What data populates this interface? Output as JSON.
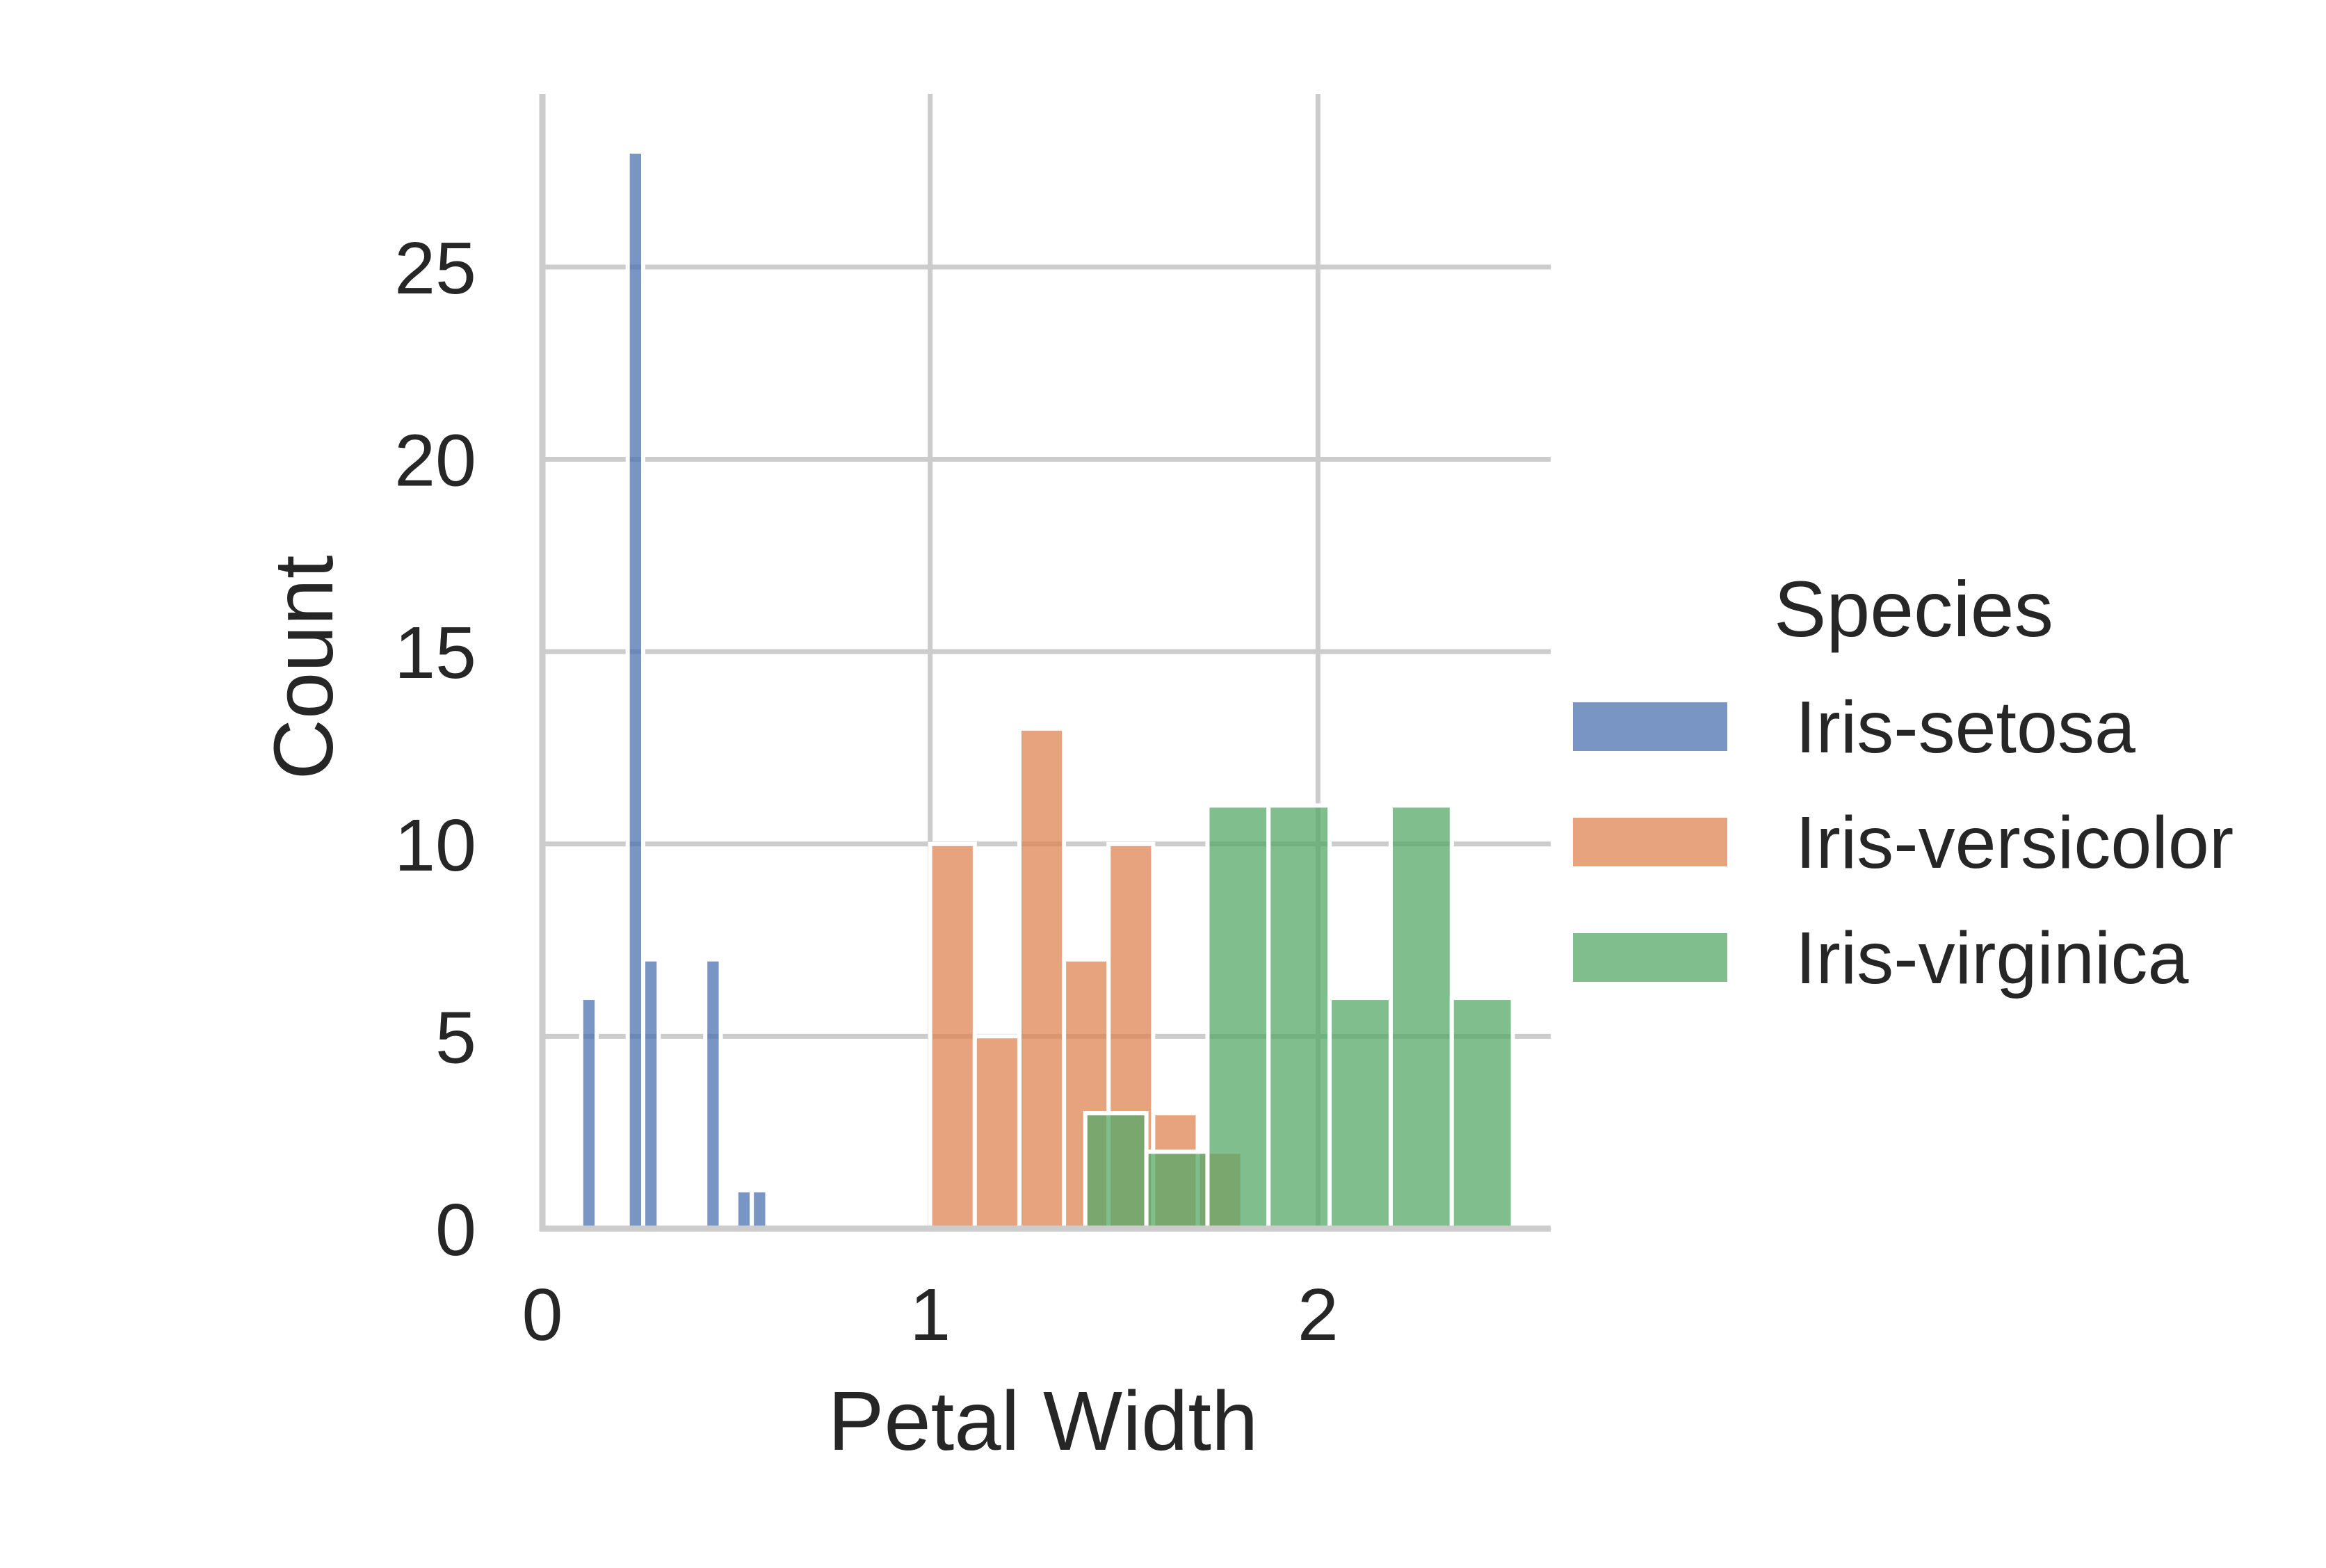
{
  "chart_data": {
    "type": "bar",
    "xlabel": "Petal Width",
    "ylabel": "Count",
    "xlim": [
      0,
      2.6
    ],
    "ylim": [
      0,
      29.5
    ],
    "xticks": [
      {
        "value": 0,
        "label": "0"
      },
      {
        "value": 1,
        "label": "1"
      },
      {
        "value": 2,
        "label": "2"
      }
    ],
    "yticks": [
      {
        "value": 0,
        "label": "0"
      },
      {
        "value": 5,
        "label": "5"
      },
      {
        "value": 10,
        "label": "10"
      },
      {
        "value": 15,
        "label": "15"
      },
      {
        "value": 20,
        "label": "20"
      },
      {
        "value": 25,
        "label": "25"
      }
    ],
    "grid": true,
    "legend": {
      "title": "Species",
      "placement": "right"
    },
    "series": [
      {
        "name": "Iris-setosa",
        "color": "#4c72b0",
        "bins": [
          {
            "x0": 0.1,
            "x1": 0.14,
            "count": 6
          },
          {
            "x0": 0.14,
            "x1": 0.18,
            "count": 0
          },
          {
            "x0": 0.18,
            "x1": 0.22,
            "count": 0
          },
          {
            "x0": 0.22,
            "x1": 0.26,
            "count": 28
          },
          {
            "x0": 0.26,
            "x1": 0.3,
            "count": 7
          },
          {
            "x0": 0.3,
            "x1": 0.34,
            "count": 0
          },
          {
            "x0": 0.34,
            "x1": 0.38,
            "count": 0
          },
          {
            "x0": 0.38,
            "x1": 0.42,
            "count": 0
          },
          {
            "x0": 0.42,
            "x1": 0.46,
            "count": 7
          },
          {
            "x0": 0.46,
            "x1": 0.5,
            "count": 0
          },
          {
            "x0": 0.5,
            "x1": 0.54,
            "count": 1
          },
          {
            "x0": 0.54,
            "x1": 0.58,
            "count": 1
          }
        ]
      },
      {
        "name": "Iris-versicolor",
        "color": "#dd8452",
        "bins": [
          {
            "x0": 1.0,
            "x1": 1.115,
            "count": 10
          },
          {
            "x0": 1.115,
            "x1": 1.23,
            "count": 5
          },
          {
            "x0": 1.23,
            "x1": 1.345,
            "count": 13
          },
          {
            "x0": 1.345,
            "x1": 1.46,
            "count": 7
          },
          {
            "x0": 1.46,
            "x1": 1.575,
            "count": 10
          },
          {
            "x0": 1.575,
            "x1": 1.69,
            "count": 3
          },
          {
            "x0": 1.69,
            "x1": 1.805,
            "count": 2
          }
        ]
      },
      {
        "name": "Iris-virginica",
        "color": "#55a868",
        "bins": [
          {
            "x0": 1.4,
            "x1": 1.5575,
            "count": 3
          },
          {
            "x0": 1.5575,
            "x1": 1.715,
            "count": 2
          },
          {
            "x0": 1.715,
            "x1": 1.8725,
            "count": 11
          },
          {
            "x0": 1.8725,
            "x1": 2.03,
            "count": 11
          },
          {
            "x0": 2.03,
            "x1": 2.1875,
            "count": 6
          },
          {
            "x0": 2.1875,
            "x1": 2.345,
            "count": 11
          },
          {
            "x0": 2.345,
            "x1": 2.5025,
            "count": 6
          }
        ]
      }
    ]
  }
}
